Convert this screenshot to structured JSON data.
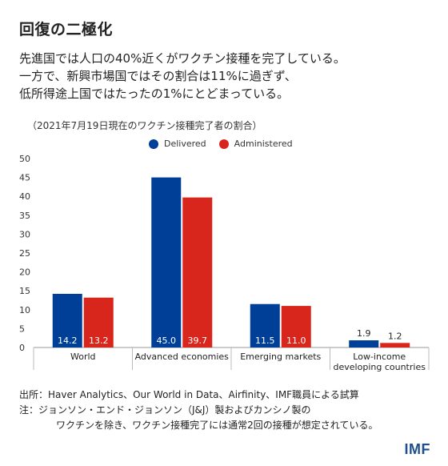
{
  "title": "回復の二極化",
  "lead": [
    "先進国では人口の40%近くがワクチン接種を完了している。",
    "一方で、新興市場国ではその割合は11%に過ぎず、",
    "低所得途上国ではたったの1%にとどまっている。"
  ],
  "subtitle": "（2021年7月19日現在のワクチン接種完了者の割合）",
  "legend": [
    {
      "label": "Delivered",
      "color": "#003f98"
    },
    {
      "label": "Administered",
      "color": "#d9261c"
    }
  ],
  "chart_data": {
    "type": "bar",
    "categories": [
      "World",
      "Advanced economies",
      "Emerging markets",
      "Low-income developing countries"
    ],
    "category_lines": [
      [
        "World"
      ],
      [
        "Advanced economies"
      ],
      [
        "Emerging markets"
      ],
      [
        "Low-income",
        "developing countries"
      ]
    ],
    "series": [
      {
        "name": "Delivered",
        "color": "#003f98",
        "values": [
          14.2,
          45.0,
          11.5,
          1.9
        ]
      },
      {
        "name": "Administered",
        "color": "#d9261c",
        "values": [
          13.2,
          39.7,
          11.0,
          1.2
        ]
      }
    ],
    "value_labels": [
      [
        "14.2",
        "45.0",
        "11.5",
        "1.9"
      ],
      [
        "13.2",
        "39.7",
        "11.0",
        "1.2"
      ]
    ],
    "yticks": [
      "0",
      "5",
      "10",
      "15",
      "20",
      "25",
      "30",
      "35",
      "40",
      "45",
      "50"
    ],
    "ylim": [
      0,
      50
    ],
    "grid": false,
    "legend_position": "top"
  },
  "notes": {
    "source": "出所：Haver Analytics、Our World in Data、Airfinity、IMF職員による試算",
    "note_line1": "注：ジョンソン・エンド・ジョンソン（J&J）製およびカンシノ製の",
    "note_line2": "ワクチンを除き、ワクチン接種完了には通常2回の接種が想定されている。"
  },
  "brand": "IMF"
}
